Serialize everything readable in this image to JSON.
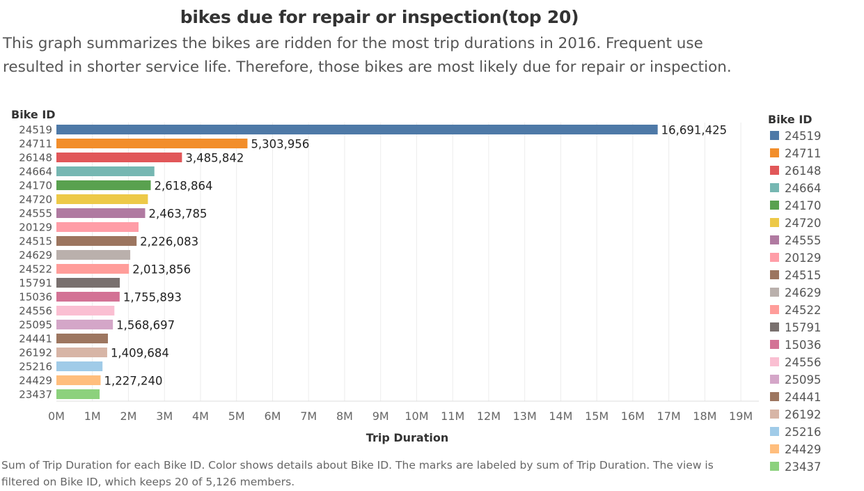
{
  "header": {
    "title": "bikes due for repair or inspection(top 20)",
    "subtitle": "This graph summarizes the bikes are ridden for the most trip durations in 2016. Frequent use resulted in shorter service life. Therefore, those bikes are most likely due for repair or inspection."
  },
  "caption": "Sum of Trip Duration for each Bike ID.  Color shows details about Bike ID.  The marks are labeled by sum of Trip Duration. The view is filtered on Bike ID, which keeps 20 of 5,126 members.",
  "chart_data": {
    "type": "bar",
    "orientation": "horizontal",
    "y_axis_title": "Bike ID",
    "xlabel": "Trip Duration",
    "xlim": [
      0,
      19500000
    ],
    "x_ticks": [
      0,
      1000000,
      2000000,
      3000000,
      4000000,
      5000000,
      6000000,
      7000000,
      8000000,
      9000000,
      10000000,
      11000000,
      12000000,
      13000000,
      14000000,
      15000000,
      16000000,
      17000000,
      18000000,
      19000000
    ],
    "x_tick_labels": [
      "0M",
      "1M",
      "2M",
      "3M",
      "4M",
      "5M",
      "6M",
      "7M",
      "8M",
      "9M",
      "10M",
      "11M",
      "12M",
      "13M",
      "14M",
      "15M",
      "16M",
      "17M",
      "18M",
      "19M"
    ],
    "grid": true,
    "legend_title": "Bike ID",
    "legend_position": "right",
    "bars": [
      {
        "id": "24519",
        "value": 16691425,
        "label": "16,691,425",
        "color": "#4e79a7"
      },
      {
        "id": "24711",
        "value": 5303956,
        "label": "5,303,956",
        "color": "#f28e2b"
      },
      {
        "id": "26148",
        "value": 3485842,
        "label": "3,485,842",
        "color": "#e15759"
      },
      {
        "id": "24664",
        "value": 2720000,
        "label": "",
        "color": "#76b7b2"
      },
      {
        "id": "24170",
        "value": 2618864,
        "label": "2,618,864",
        "color": "#59a14f"
      },
      {
        "id": "24720",
        "value": 2540000,
        "label": "",
        "color": "#edc948"
      },
      {
        "id": "24555",
        "value": 2463785,
        "label": "2,463,785",
        "color": "#b07aa1"
      },
      {
        "id": "20129",
        "value": 2280000,
        "label": "",
        "color": "#ff9da7"
      },
      {
        "id": "24515",
        "value": 2226083,
        "label": "2,226,083",
        "color": "#9c755f"
      },
      {
        "id": "24629",
        "value": 2050000,
        "label": "",
        "color": "#bab0ac"
      },
      {
        "id": "24522",
        "value": 2013856,
        "label": "2,013,856",
        "color": "#ff9d9a"
      },
      {
        "id": "15791",
        "value": 1760000,
        "label": "",
        "color": "#79706e"
      },
      {
        "id": "15036",
        "value": 1755893,
        "label": "1,755,893",
        "color": "#d37295"
      },
      {
        "id": "24556",
        "value": 1610000,
        "label": "",
        "color": "#fabfd2"
      },
      {
        "id": "25095",
        "value": 1568697,
        "label": "1,568,697",
        "color": "#d4a6c8"
      },
      {
        "id": "24441",
        "value": 1430000,
        "label": "",
        "color": "#9d7660"
      },
      {
        "id": "26192",
        "value": 1409684,
        "label": "1,409,684",
        "color": "#d7b5a6"
      },
      {
        "id": "25216",
        "value": 1280000,
        "label": "",
        "color": "#a0cbe8"
      },
      {
        "id": "24429",
        "value": 1227240,
        "label": "1,227,240",
        "color": "#ffbe7d"
      },
      {
        "id": "23437",
        "value": 1200000,
        "label": "",
        "color": "#8cd17d"
      }
    ]
  }
}
